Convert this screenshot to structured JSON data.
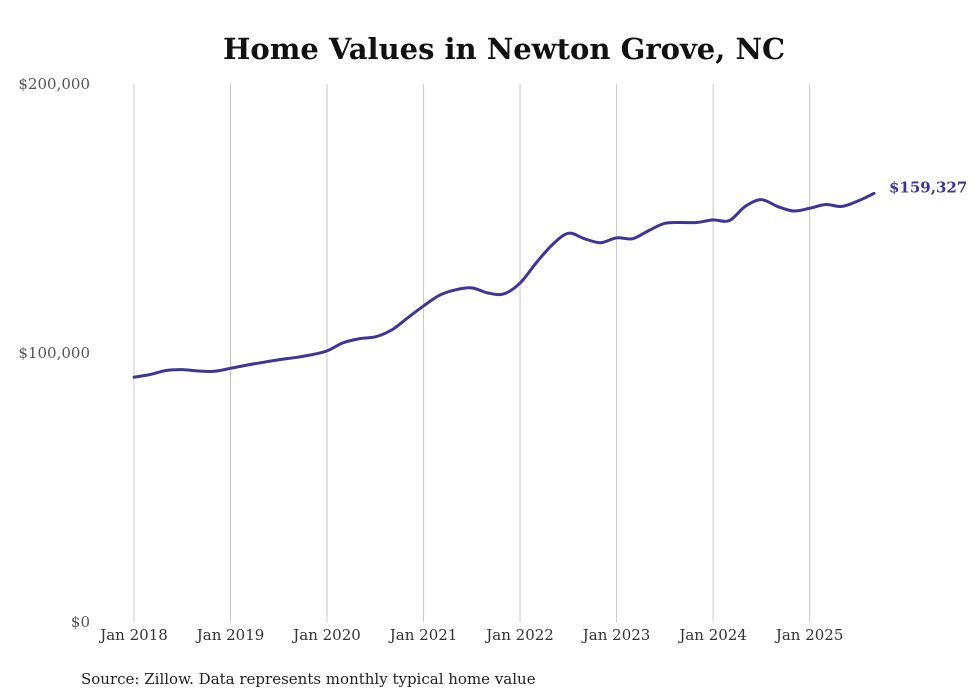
{
  "chart_data": {
    "type": "line",
    "title": "Home Values in Newton Grove, NC",
    "xlabel": "",
    "ylabel": "",
    "ylim": [
      0,
      200000
    ],
    "yticks": [
      {
        "value": 0,
        "label": "$0"
      },
      {
        "value": 100000,
        "label": "$100,000"
      },
      {
        "value": 200000,
        "label": "$200,000"
      }
    ],
    "xticks": [
      {
        "value": 2018.0,
        "label": "Jan 2018"
      },
      {
        "value": 2019.0,
        "label": "Jan 2019"
      },
      {
        "value": 2020.0,
        "label": "Jan 2020"
      },
      {
        "value": 2021.0,
        "label": "Jan 2021"
      },
      {
        "value": 2022.0,
        "label": "Jan 2022"
      },
      {
        "value": 2023.0,
        "label": "Jan 2023"
      },
      {
        "value": 2024.0,
        "label": "Jan 2024"
      },
      {
        "value": 2025.0,
        "label": "Jan 2025"
      }
    ],
    "xlim": [
      2018.0,
      2025.667
    ],
    "grid": true,
    "series": [
      {
        "name": "Typical home value",
        "color": "#3b3698",
        "x": [
          2018.0,
          2018.167,
          2018.333,
          2018.5,
          2018.667,
          2018.833,
          2019.0,
          2019.167,
          2019.333,
          2019.5,
          2019.667,
          2019.833,
          2020.0,
          2020.167,
          2020.333,
          2020.5,
          2020.667,
          2020.833,
          2021.0,
          2021.167,
          2021.333,
          2021.5,
          2021.667,
          2021.833,
          2022.0,
          2022.167,
          2022.333,
          2022.5,
          2022.667,
          2022.833,
          2023.0,
          2023.167,
          2023.333,
          2023.5,
          2023.667,
          2023.833,
          2024.0,
          2024.167,
          2024.333,
          2024.5,
          2024.667,
          2024.833,
          2025.0,
          2025.167,
          2025.333,
          2025.5,
          2025.667
        ],
        "values": [
          91000,
          92000,
          93500,
          93800,
          93300,
          93200,
          94300,
          95500,
          96500,
          97500,
          98300,
          99300,
          100800,
          103800,
          105300,
          106000,
          108500,
          113000,
          117500,
          121500,
          123500,
          124200,
          122300,
          122000,
          126000,
          133500,
          140200,
          144500,
          142500,
          141000,
          142800,
          142500,
          145500,
          148200,
          148500,
          148500,
          149500,
          149200,
          154500,
          157000,
          154500,
          152800,
          153800,
          155200,
          154500,
          156500,
          159327
        ]
      }
    ],
    "end_label": "$159,327",
    "annotations": [
      "$159,327"
    ]
  },
  "footer": {
    "source": "Source: Zillow. Data represents monthly typical home value"
  }
}
